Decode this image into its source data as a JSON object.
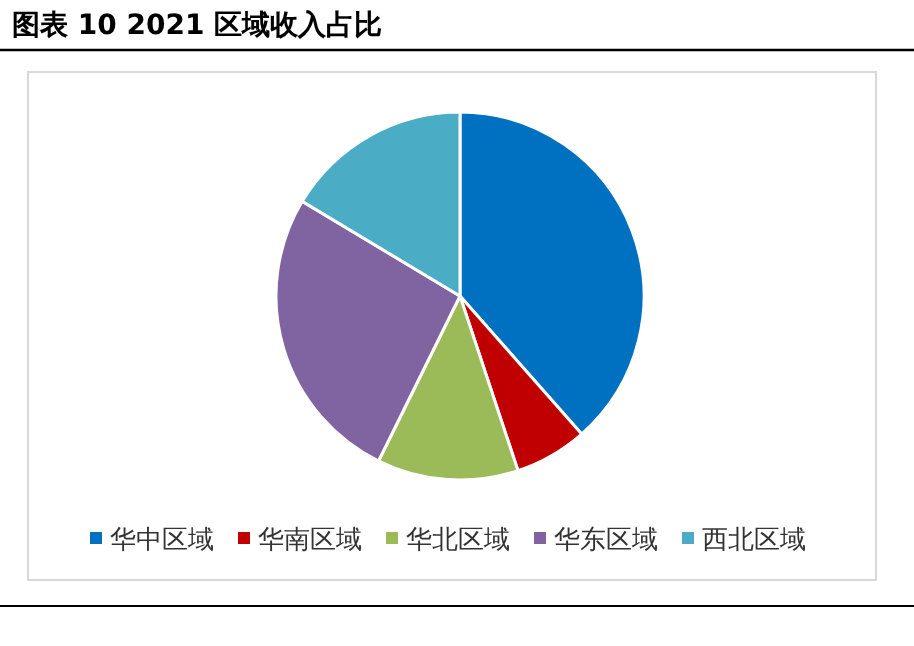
{
  "chart_data": {
    "type": "pie",
    "title": "图表 10 2021 区域收入占比",
    "categories": [
      "华中区域",
      "华南区域",
      "华北区域",
      "华东区域",
      "西北区域"
    ],
    "values": [
      38.5,
      6.4,
      12.4,
      26.3,
      16.4
    ],
    "colors": [
      "#0070c0",
      "#c00000",
      "#9bbb59",
      "#8064a2",
      "#4bacc6"
    ],
    "legend": "bottom"
  }
}
